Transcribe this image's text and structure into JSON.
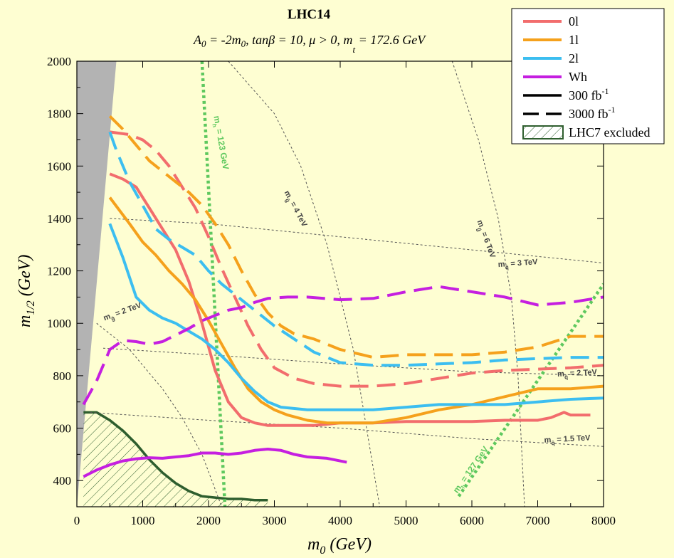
{
  "chart_data": {
    "type": "line",
    "title": "LHC14",
    "subtitle": "A0 = -2m0, tanβ = 10, μ > 0, m_t = 172.6 GeV",
    "xlabel": "m0 (GeV)",
    "ylabel": "m1/2 (GeV)",
    "xlim": [
      0,
      8000
    ],
    "ylim": [
      300,
      2000
    ],
    "xticks": [
      0,
      1000,
      2000,
      3000,
      4000,
      5000,
      6000,
      7000,
      8000
    ],
    "yticks": [
      400,
      600,
      800,
      1000,
      1200,
      1400,
      1600,
      1800,
      2000
    ],
    "grid": false,
    "legend_position": "top-right",
    "colors": {
      "background": "#fefed2",
      "0l": "#f26d6d",
      "1l": "#f5a11c",
      "2l": "#3cbef0",
      "Wh": "#c51fe0",
      "excluded": "#2e5e2e",
      "theory_region": "#b3b3b3",
      "higgs_contour": "#5ec85e",
      "mass_contour": "#555555"
    },
    "legend": [
      {
        "label": "0l",
        "kind": "color",
        "color": "#f26d6d"
      },
      {
        "label": "1l",
        "kind": "color",
        "color": "#f5a11c"
      },
      {
        "label": "2l",
        "kind": "color",
        "color": "#3cbef0"
      },
      {
        "label": "Wh",
        "kind": "color",
        "color": "#c51fe0"
      },
      {
        "label": "300 fb",
        "sup": "-1",
        "kind": "solid"
      },
      {
        "label": "3000 fb",
        "sup": "-1",
        "kind": "dashed"
      },
      {
        "label": "LHC7 excluded",
        "kind": "hatch"
      }
    ],
    "series": [
      {
        "name": "0l",
        "luminosity": "300 fb-1",
        "style": "solid",
        "color": "#f26d6d",
        "x": [
          500,
          700,
          900,
          1100,
          1300,
          1500,
          1700,
          1900,
          2100,
          2300,
          2500,
          2700,
          2900,
          3100,
          3300,
          3600,
          3800,
          4000,
          4500,
          5000,
          5500,
          6000,
          6500,
          7000,
          7200,
          7400,
          7500,
          7800
        ],
        "y": [
          1570,
          1550,
          1520,
          1440,
          1360,
          1280,
          1160,
          1000,
          820,
          700,
          640,
          620,
          610,
          610,
          610,
          610,
          615,
          620,
          620,
          625,
          625,
          625,
          630,
          630,
          640,
          660,
          650,
          650
        ]
      },
      {
        "name": "1l",
        "luminosity": "300 fb-1",
        "style": "solid",
        "color": "#f5a11c",
        "x": [
          500,
          800,
          1000,
          1200,
          1400,
          1600,
          1800,
          2000,
          2200,
          2400,
          2600,
          2800,
          3000,
          3200,
          3500,
          3800,
          4000,
          4500,
          5000,
          5500,
          6000,
          6500,
          7000,
          7500,
          8000
        ],
        "y": [
          1480,
          1380,
          1310,
          1260,
          1200,
          1150,
          1090,
          1010,
          920,
          830,
          750,
          700,
          670,
          650,
          630,
          620,
          620,
          620,
          640,
          670,
          690,
          720,
          750,
          750,
          760
        ]
      },
      {
        "name": "2l",
        "luminosity": "300 fb-1",
        "style": "solid",
        "color": "#3cbef0",
        "x": [
          500,
          700,
          900,
          1100,
          1300,
          1500,
          1700,
          1900,
          2100,
          2300,
          2500,
          2700,
          2900,
          3100,
          3500,
          4000,
          4500,
          5000,
          5500,
          6000,
          6500,
          7000,
          7500,
          8000
        ],
        "y": [
          1380,
          1250,
          1100,
          1050,
          1020,
          1000,
          970,
          940,
          900,
          850,
          790,
          740,
          700,
          680,
          670,
          670,
          670,
          680,
          690,
          690,
          690,
          700,
          710,
          715
        ]
      },
      {
        "name": "Wh",
        "luminosity": "300 fb-1",
        "style": "solid",
        "color": "#c51fe0",
        "x": [
          100,
          300,
          500,
          700,
          900,
          1100,
          1300,
          1500,
          1700,
          1900,
          2100,
          2300,
          2500,
          2700,
          2900,
          3100,
          3300,
          3500,
          3800,
          4100
        ],
        "y": [
          415,
          440,
          460,
          475,
          483,
          487,
          485,
          490,
          495,
          505,
          505,
          500,
          505,
          515,
          520,
          515,
          500,
          490,
          485,
          470
        ]
      },
      {
        "name": "0l",
        "luminosity": "3000 fb-1",
        "style": "dashed",
        "color": "#f26d6d",
        "x": [
          500,
          800,
          1000,
          1200,
          1400,
          1600,
          1800,
          2000,
          2200,
          2400,
          2600,
          2800,
          3000,
          3300,
          3600,
          4000,
          4500,
          5000,
          5500,
          6000,
          6500,
          7000,
          7500,
          8000
        ],
        "y": [
          1730,
          1720,
          1700,
          1660,
          1600,
          1520,
          1440,
          1330,
          1210,
          1100,
          990,
          900,
          830,
          790,
          770,
          760,
          760,
          770,
          790,
          810,
          820,
          825,
          830,
          840
        ]
      },
      {
        "name": "1l",
        "luminosity": "3000 fb-1",
        "style": "dashed",
        "color": "#f5a11c",
        "x": [
          500,
          700,
          900,
          1100,
          1300,
          1500,
          1700,
          1900,
          2100,
          2300,
          2500,
          2700,
          2900,
          3100,
          3300,
          3600,
          4000,
          4500,
          5000,
          5500,
          6000,
          6500,
          7000,
          7500,
          8000
        ],
        "y": [
          1790,
          1740,
          1680,
          1620,
          1580,
          1540,
          1500,
          1450,
          1380,
          1300,
          1200,
          1110,
          1040,
          990,
          960,
          940,
          900,
          870,
          880,
          880,
          880,
          890,
          910,
          950,
          950
        ]
      },
      {
        "name": "2l",
        "luminosity": "3000 fb-1",
        "style": "dashed",
        "color": "#3cbef0",
        "x": [
          500,
          600,
          800,
          1000,
          1200,
          1400,
          1600,
          1800,
          2000,
          2200,
          2400,
          2600,
          2800,
          3000,
          3300,
          3600,
          4000,
          4500,
          5000,
          5500,
          6000,
          6500,
          7000,
          7500,
          8000
        ],
        "y": [
          1730,
          1660,
          1540,
          1450,
          1360,
          1320,
          1290,
          1260,
          1200,
          1150,
          1110,
          1070,
          1030,
          990,
          940,
          890,
          850,
          840,
          840,
          845,
          850,
          860,
          865,
          870,
          870
        ]
      },
      {
        "name": "Wh",
        "luminosity": "3000 fb-1",
        "style": "dashed",
        "color": "#c51fe0",
        "x": [
          100,
          300,
          500,
          700,
          900,
          1100,
          1300,
          1500,
          1700,
          1900,
          2100,
          2300,
          2500,
          2700,
          2900,
          3200,
          3500,
          4000,
          4500,
          5000,
          5500,
          6000,
          6500,
          7000,
          7500,
          8000
        ],
        "y": [
          690,
          780,
          900,
          935,
          930,
          920,
          930,
          955,
          980,
          1010,
          1030,
          1050,
          1060,
          1080,
          1095,
          1100,
          1100,
          1090,
          1095,
          1120,
          1140,
          1120,
          1100,
          1070,
          1080,
          1100
        ]
      }
    ],
    "excluded_region": {
      "label": "LHC7 excluded",
      "boundary_x": [
        100,
        300,
        500,
        700,
        900,
        1100,
        1300,
        1500,
        1700,
        1900,
        2100,
        2300,
        2500,
        2700,
        2900
      ],
      "boundary_y": [
        660,
        660,
        630,
        590,
        540,
        480,
        430,
        390,
        360,
        340,
        335,
        330,
        330,
        325,
        325
      ]
    },
    "theory_excluded_region": {
      "x": [
        0,
        600,
        0
      ],
      "y": [
        2000,
        2000,
        300
      ]
    },
    "contours": [
      {
        "label_main": "m",
        "label_sub": "g̃",
        "label_rest": " = 2 TeV",
        "x": [
          300,
          800,
          1300,
          1600,
          1900,
          2200
        ],
        "y": [
          1000,
          900,
          750,
          640,
          500,
          300
        ]
      },
      {
        "label_main": "m",
        "label_sub": "g̃",
        "label_rest": " = 4 TeV",
        "x": [
          2300,
          3000,
          3400,
          3800,
          4200,
          4600
        ],
        "y": [
          2000,
          1800,
          1600,
          1300,
          900,
          300
        ]
      },
      {
        "label_main": "m",
        "label_sub": "g̃",
        "label_rest": " = 6 TeV",
        "x": [
          5700,
          6100,
          6400,
          6600,
          6700,
          6800
        ],
        "y": [
          2000,
          1700,
          1400,
          1100,
          800,
          300
        ]
      },
      {
        "label_main": "m",
        "label_sub": "q̃",
        "label_rest": " = 3 TeV",
        "x": [
          500,
          2000,
          4000,
          6000,
          8000
        ],
        "y": [
          1400,
          1380,
          1330,
          1280,
          1230
        ]
      },
      {
        "label_main": "m",
        "label_sub": "q̃",
        "label_rest": " = 2 TeV",
        "x": [
          400,
          2000,
          4000,
          6000,
          8000
        ],
        "y": [
          905,
          880,
          845,
          815,
          800
        ]
      },
      {
        "label_main": "m",
        "label_sub": "q̃",
        "label_rest": " = 1.5 TeV",
        "x": [
          200,
          2000,
          4000,
          6000,
          8000
        ],
        "y": [
          660,
          630,
          600,
          560,
          530
        ]
      }
    ],
    "higgs_contours": [
      {
        "label": "m_h = 123 GeV",
        "x": [
          1900,
          2250
        ],
        "y": [
          2000,
          300
        ]
      },
      {
        "label": "m_h = 127 GeV",
        "x": [
          5800,
          8000
        ],
        "y": [
          340,
          1150
        ]
      }
    ]
  }
}
